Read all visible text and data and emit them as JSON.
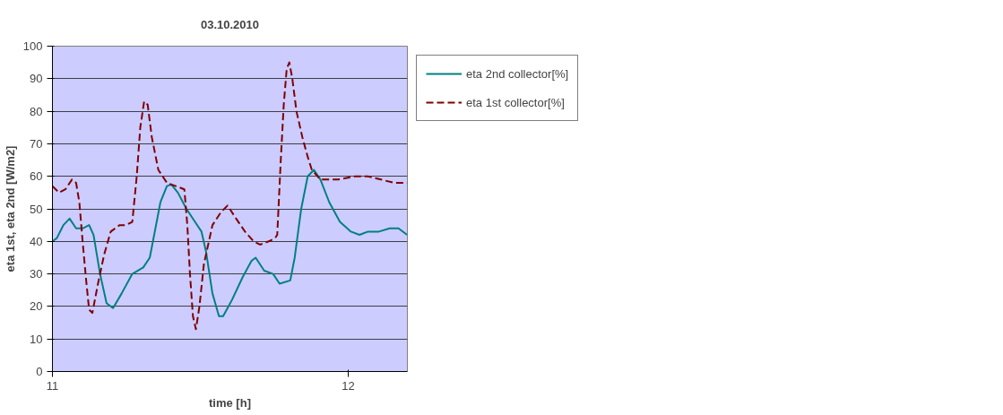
{
  "chart_data": {
    "type": "line",
    "title": "03.10.2010",
    "xlabel": "time [h]",
    "ylabel": "eta 1st, eta 2nd [W/m2]",
    "xlim": [
      11,
      12.2
    ],
    "xticks": [
      11,
      12
    ],
    "ylim": [
      0,
      100
    ],
    "yticks": [
      0,
      10,
      20,
      30,
      40,
      50,
      60,
      70,
      80,
      90,
      100
    ],
    "grid": "y",
    "legend": "right",
    "marker": "none",
    "series": [
      {
        "name": "eta 2nd collector[%]",
        "color": "#008080",
        "line_style": "solid",
        "x": [
          11.0,
          11.015,
          11.037,
          11.058,
          11.08,
          11.102,
          11.124,
          11.139,
          11.161,
          11.183,
          11.205,
          11.234,
          11.27,
          11.307,
          11.329,
          11.344,
          11.365,
          11.387,
          11.402,
          11.424,
          11.453,
          11.482,
          11.504,
          11.519,
          11.541,
          11.563,
          11.577,
          11.607,
          11.643,
          11.673,
          11.687,
          11.716,
          11.746,
          11.768,
          11.804,
          11.819,
          11.841,
          11.863,
          11.884,
          11.906,
          11.936,
          11.972,
          12.009,
          12.038,
          12.067,
          12.104,
          12.14,
          12.17,
          12.199
        ],
        "values": [
          40,
          41,
          45,
          47,
          44,
          44,
          45,
          42,
          30,
          21,
          19.5,
          24,
          30,
          32,
          35,
          42,
          52,
          57,
          57.5,
          55,
          50,
          46,
          43,
          37,
          24,
          17,
          17,
          22,
          29,
          34,
          35,
          31,
          30,
          27,
          28,
          35,
          50,
          60,
          62,
          59,
          52,
          46,
          43,
          42,
          43,
          43,
          44,
          44,
          42
        ]
      },
      {
        "name": "eta 1st collector[%]",
        "color": "#800000",
        "line_style": "dashed",
        "x": [
          11.0,
          11.022,
          11.044,
          11.066,
          11.08,
          11.091,
          11.102,
          11.114,
          11.124,
          11.135,
          11.154,
          11.175,
          11.197,
          11.227,
          11.249,
          11.27,
          11.285,
          11.297,
          11.31,
          11.322,
          11.336,
          11.358,
          11.387,
          11.417,
          11.446,
          11.456,
          11.465,
          11.475,
          11.485,
          11.497,
          11.512,
          11.541,
          11.57,
          11.592,
          11.621,
          11.651,
          11.68,
          11.702,
          11.731,
          11.753,
          11.76,
          11.772,
          11.782,
          11.792,
          11.801,
          11.811,
          11.825,
          11.845,
          11.863,
          11.877,
          11.906,
          11.965,
          12.023,
          12.067,
          12.111,
          12.155,
          12.199
        ],
        "values": [
          57,
          55,
          56,
          59,
          58,
          52,
          40,
          28,
          19,
          18,
          27,
          36,
          43,
          45,
          45,
          46,
          60,
          75,
          83,
          82,
          72,
          62,
          58,
          57,
          56,
          45,
          30,
          17,
          13,
          20,
          33,
          45,
          49,
          51,
          47,
          43,
          40,
          39,
          40,
          41,
          42,
          65,
          82,
          93,
          95,
          90,
          80,
          72,
          66,
          62,
          59,
          59,
          60,
          60,
          59,
          58,
          58
        ]
      }
    ]
  }
}
